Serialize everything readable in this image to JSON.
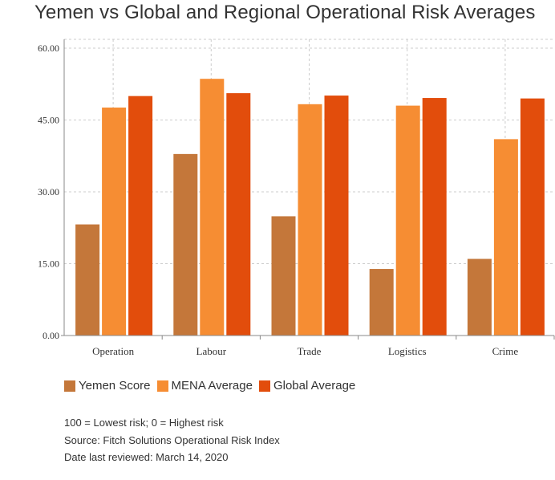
{
  "chart_data": {
    "type": "bar",
    "title": "Yemen vs Global and Regional Operational Risk Averages",
    "categories": [
      "Operation",
      "Labour",
      "Trade",
      "Logistics",
      "Crime"
    ],
    "series": [
      {
        "name": "Yemen Score",
        "color": "#c4773a",
        "values": [
          23.2,
          37.9,
          24.9,
          13.9,
          16.0
        ]
      },
      {
        "name": "MENA Average",
        "color": "#f68d33",
        "values": [
          47.6,
          53.6,
          48.3,
          48.0,
          41.0
        ]
      },
      {
        "name": "Global Average",
        "color": "#e24d0c",
        "values": [
          50.0,
          50.6,
          50.1,
          49.6,
          49.5
        ]
      }
    ],
    "y_ticks": [
      "0.00",
      "15.00",
      "30.00",
      "45.00",
      "60.00"
    ],
    "ylim": [
      0,
      60
    ],
    "grid": true,
    "legend_position": "bottom-left"
  },
  "notes": {
    "scale": "100 = Lowest risk; 0 = Highest risk",
    "source": "Source: Fitch Solutions Operational Risk Index",
    "reviewed": "Date last reviewed: March 14, 2020"
  }
}
